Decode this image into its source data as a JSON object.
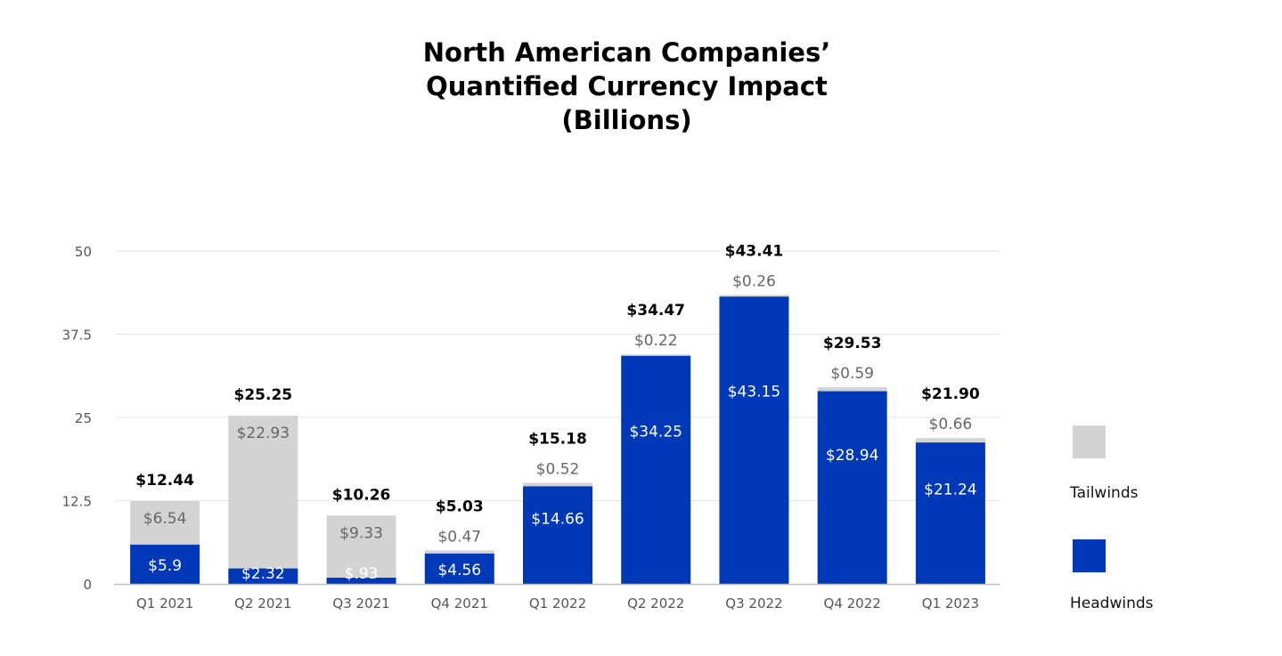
{
  "chart_data": {
    "type": "bar",
    "stacked": true,
    "title_lines": [
      "North American Companies’",
      "Quantified Currency Impact",
      "(Billions)"
    ],
    "title": "North American Companies’ Quantified Currency Impact (Billions)",
    "xlabel": "",
    "ylabel": "",
    "ylim": [
      0,
      50
    ],
    "yticks": [
      "0",
      "12.5",
      "25",
      "37.5",
      "50"
    ],
    "ytick_values": [
      0,
      12.5,
      25,
      37.5,
      50
    ],
    "grid": true,
    "legend_position": "right",
    "categories": [
      "Q1 2021",
      "Q2 2021",
      "Q3 2021",
      "Q4 2021",
      "Q1 2022",
      "Q2 2022",
      "Q3 2022",
      "Q4 2022",
      "Q1 2023"
    ],
    "series": [
      {
        "name": "Headwinds",
        "color": "#0039B8",
        "values": [
          5.9,
          2.32,
          0.93,
          4.56,
          14.66,
          34.25,
          43.15,
          28.94,
          21.24
        ],
        "labels": [
          "$5.9",
          "$2.32",
          "$.93",
          "$4.56",
          "$14.66",
          "$34.25",
          "$43.15",
          "$28.94",
          "$21.24"
        ]
      },
      {
        "name": "Tailwinds",
        "color": "#D3D3D3",
        "values": [
          6.54,
          22.93,
          9.33,
          0.47,
          0.52,
          0.22,
          0.26,
          0.59,
          0.66
        ],
        "labels": [
          "$6.54",
          "$22.93",
          "$9.33",
          "$0.47",
          "$0.52",
          "$0.22",
          "$0.26",
          "$0.59",
          "$0.66"
        ]
      }
    ],
    "totals": [
      12.44,
      25.25,
      10.26,
      5.03,
      15.18,
      34.47,
      43.41,
      29.53,
      21.9
    ],
    "total_labels": [
      "$12.44",
      "$25.25",
      "$10.26",
      "$5.03",
      "$15.18",
      "$34.47",
      "$43.41",
      "$29.53",
      "$21.90"
    ]
  },
  "legend": [
    {
      "name": "Tailwinds",
      "color": "#D3D3D3"
    },
    {
      "name": "Headwinds",
      "color": "#0039B8"
    }
  ]
}
